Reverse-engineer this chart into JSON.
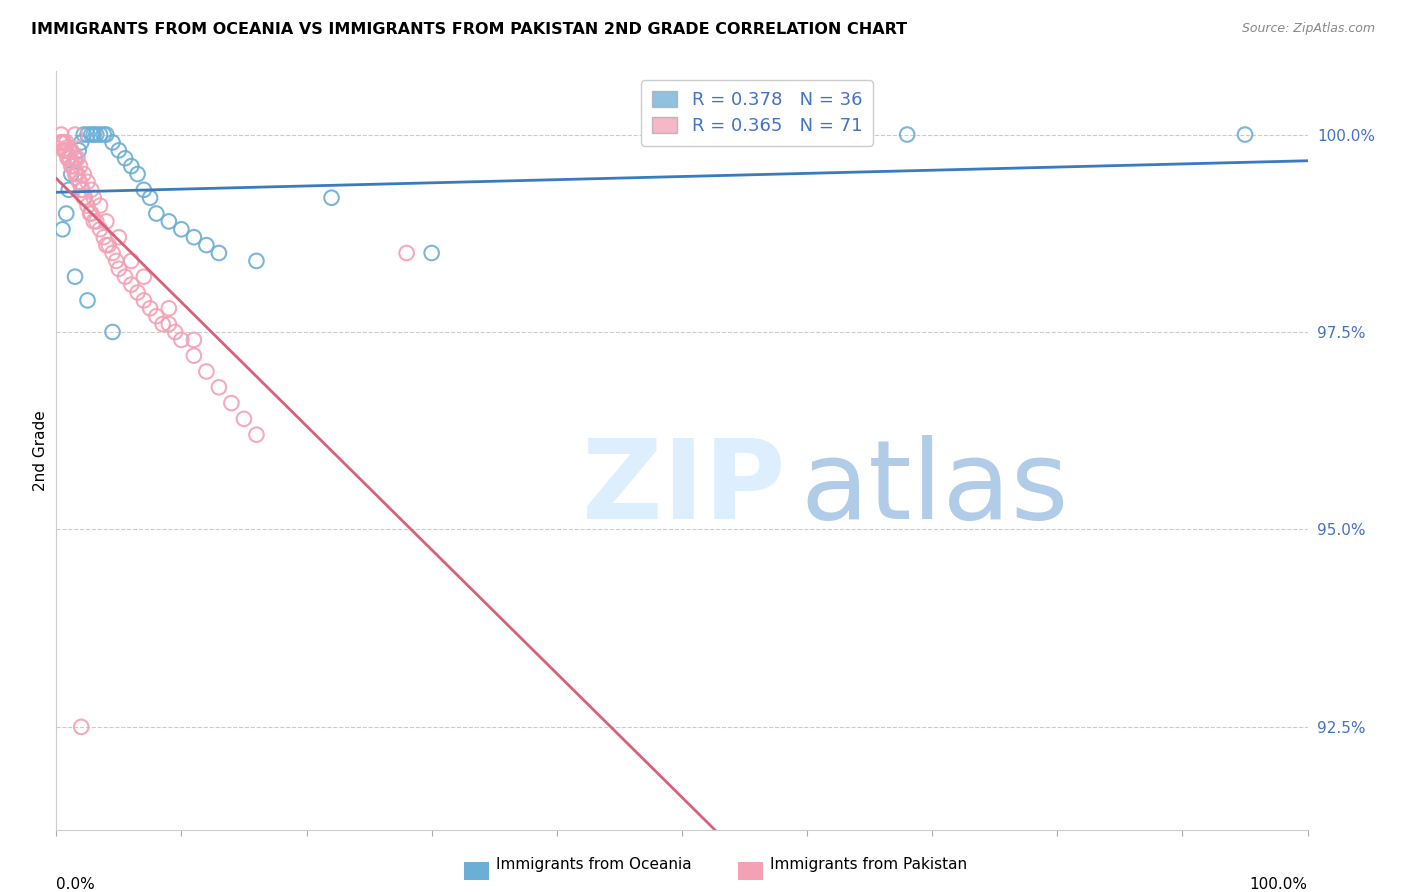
{
  "title": "IMMIGRANTS FROM OCEANIA VS IMMIGRANTS FROM PAKISTAN 2ND GRADE CORRELATION CHART",
  "source_text": "Source: ZipAtlas.com",
  "ylabel": "2nd Grade",
  "ytick_labels": [
    "100.0%",
    "97.5%",
    "95.0%",
    "92.5%"
  ],
  "ytick_values": [
    1.0,
    0.975,
    0.95,
    0.925
  ],
  "xmin": 0.0,
  "xmax": 1.0,
  "ymin": 0.912,
  "ymax": 1.008,
  "legend_r_oceania": "R = 0.378",
  "legend_n_oceania": "N = 36",
  "legend_r_pakistan": "R = 0.365",
  "legend_n_pakistan": "N = 71",
  "oceania_color": "#6baed6",
  "pakistan_color": "#f4a0b5",
  "trendline_oceania_color": "#3a7abf",
  "trendline_pakistan_color": "#d9607a",
  "oceania_scatter_x": [
    0.005,
    0.008,
    0.01,
    0.012,
    0.015,
    0.018,
    0.02,
    0.022,
    0.025,
    0.028,
    0.03,
    0.032,
    0.035,
    0.038,
    0.04,
    0.045,
    0.05,
    0.055,
    0.06,
    0.065,
    0.07,
    0.075,
    0.08,
    0.09,
    0.1,
    0.11,
    0.12,
    0.13,
    0.16,
    0.22,
    0.3,
    0.68,
    0.95,
    0.015,
    0.025,
    0.045
  ],
  "oceania_scatter_y": [
    0.988,
    0.99,
    0.993,
    0.995,
    0.997,
    0.998,
    0.999,
    1.0,
    1.0,
    1.0,
    1.0,
    1.0,
    1.0,
    1.0,
    1.0,
    0.999,
    0.998,
    0.997,
    0.996,
    0.995,
    0.993,
    0.992,
    0.99,
    0.989,
    0.988,
    0.987,
    0.986,
    0.985,
    0.984,
    0.992,
    0.985,
    1.0,
    1.0,
    0.982,
    0.979,
    0.975
  ],
  "pakistan_scatter_x": [
    0.003,
    0.004,
    0.005,
    0.006,
    0.007,
    0.008,
    0.009,
    0.01,
    0.011,
    0.012,
    0.013,
    0.014,
    0.015,
    0.016,
    0.017,
    0.018,
    0.019,
    0.02,
    0.021,
    0.022,
    0.023,
    0.025,
    0.027,
    0.028,
    0.03,
    0.032,
    0.035,
    0.038,
    0.04,
    0.042,
    0.045,
    0.048,
    0.05,
    0.055,
    0.06,
    0.065,
    0.07,
    0.075,
    0.08,
    0.085,
    0.09,
    0.095,
    0.1,
    0.11,
    0.12,
    0.13,
    0.14,
    0.15,
    0.16,
    0.28,
    0.004,
    0.006,
    0.008,
    0.01,
    0.012,
    0.015,
    0.017,
    0.019,
    0.022,
    0.025,
    0.028,
    0.03,
    0.035,
    0.04,
    0.05,
    0.06,
    0.07,
    0.09,
    0.11,
    0.015,
    0.02
  ],
  "pakistan_scatter_y": [
    0.999,
    0.999,
    0.999,
    0.998,
    0.998,
    0.998,
    0.997,
    0.997,
    0.997,
    0.996,
    0.996,
    0.996,
    0.995,
    0.995,
    0.995,
    0.994,
    0.994,
    0.993,
    0.993,
    0.992,
    0.992,
    0.991,
    0.99,
    0.99,
    0.989,
    0.989,
    0.988,
    0.987,
    0.986,
    0.986,
    0.985,
    0.984,
    0.983,
    0.982,
    0.981,
    0.98,
    0.979,
    0.978,
    0.977,
    0.976,
    0.976,
    0.975,
    0.974,
    0.972,
    0.97,
    0.968,
    0.966,
    0.964,
    0.962,
    0.985,
    1.0,
    0.999,
    0.999,
    0.998,
    0.998,
    0.997,
    0.997,
    0.996,
    0.995,
    0.994,
    0.993,
    0.992,
    0.991,
    0.989,
    0.987,
    0.984,
    0.982,
    0.978,
    0.974,
    1.0,
    0.925
  ]
}
